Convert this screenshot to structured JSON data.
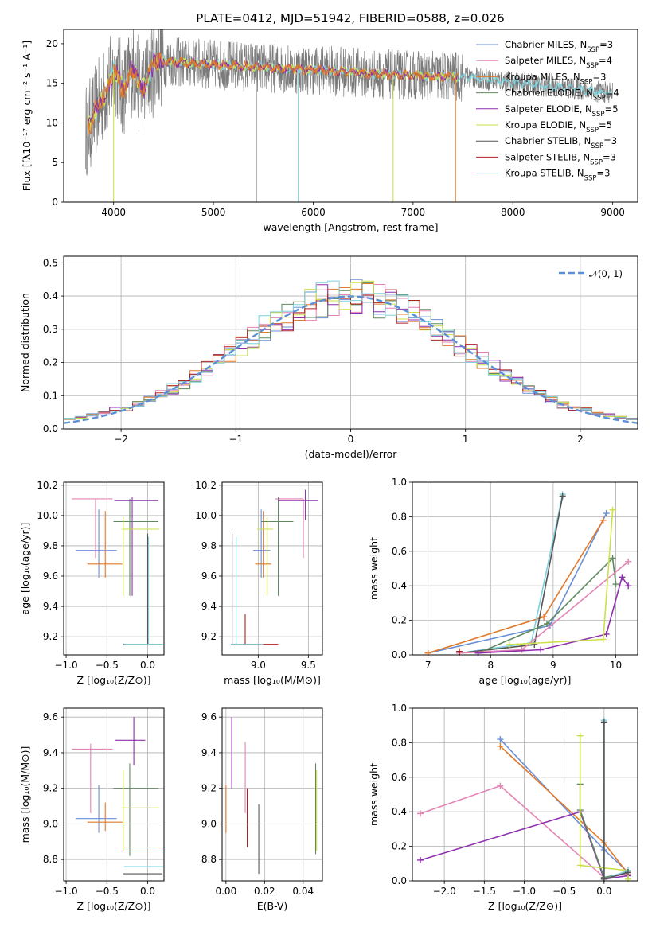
{
  "figure": {
    "title": "PLATE=0412, MJD=51942, FIBERID=0588, z=0.026"
  },
  "colors": {
    "chabrier_miles": "#6a8fd6",
    "salpeter_miles": "#e07a2a",
    "kroupa_miles": "#7a7a7a",
    "chabrier_elodie": "#5f8a5f",
    "salpeter_elodie": "#8e2fae",
    "kroupa_elodie": "#cde04a",
    "chabrier_stelib": "#555555",
    "salpeter_stelib": "#b02020",
    "kroupa_stelib": "#7fd0dc",
    "pink": "#e484b4",
    "normal": "#5b8fd6"
  },
  "chart_data": [
    {
      "id": "spectrum",
      "type": "line",
      "xlabel": "wavelength [Angstrom, rest frame]",
      "ylabel": "Flux [fλ10⁻¹⁷ erg cm⁻² s⁻¹ A⁻¹]",
      "xlim": [
        3500,
        9250
      ],
      "ylim": [
        0,
        21.8
      ],
      "xticks": [
        4000,
        5000,
        6000,
        7000,
        8000,
        9000
      ],
      "yticks": [
        0,
        5,
        10,
        15,
        20
      ],
      "legend_position": "top-right",
      "legend": [
        {
          "label": "Chabrier MILES, N",
          "sub": "SSP",
          "tail": "=3",
          "color": "#6a8fd6"
        },
        {
          "label": "Salpeter MILES, N",
          "sub": "SSP",
          "tail": "=4",
          "color": "#e484b4"
        },
        {
          "label": "Kroupa MILES, N",
          "sub": "SSP",
          "tail": "=3",
          "color": "#e07a2a"
        },
        {
          "label": "Chabrier ELODIE, N",
          "sub": "SSP",
          "tail": "=4",
          "color": "#5f8a5f"
        },
        {
          "label": "Salpeter ELODIE, N",
          "sub": "SSP",
          "tail": "=5",
          "color": "#8e2fae"
        },
        {
          "label": "Kroupa ELODIE, N",
          "sub": "SSP",
          "tail": "=5",
          "color": "#cde04a"
        },
        {
          "label": "Chabrier STELIB, N",
          "sub": "SSP",
          "tail": "=3",
          "color": "#555555"
        },
        {
          "label": "Salpeter STELIB, N",
          "sub": "SSP",
          "tail": "=3",
          "color": "#b02020"
        },
        {
          "label": "Kroupa STELIB, N",
          "sub": "SSP",
          "tail": "=3",
          "color": "#7fd0dc"
        }
      ],
      "data_trace": {
        "x_start": 3720,
        "x_end": 9000,
        "color": "#7a7a7a"
      },
      "model_traces": [
        {
          "color": "#7fd0dc",
          "x_end": 9000
        },
        {
          "color": "#cde04a",
          "x_end": 7450
        },
        {
          "color": "#8e2fae",
          "x_end": 7450
        },
        {
          "color": "#e07a2a",
          "x_end": 7450
        }
      ],
      "dips": [
        {
          "x": 4000,
          "y": 0,
          "color": "#cde04a"
        },
        {
          "x": 5430,
          "y": 0,
          "color": "#7a7a7a"
        },
        {
          "x": 5850,
          "y": 0,
          "color": "#7fd0dc"
        },
        {
          "x": 6800,
          "y": 0,
          "color": "#cde04a"
        },
        {
          "x": 7425,
          "y": 0,
          "color": "#e07a2a"
        }
      ]
    },
    {
      "id": "residuals",
      "type": "line",
      "xlabel": "(data-model)/error",
      "ylabel": "Normed distribution",
      "xlim": [
        -2.5,
        2.5
      ],
      "ylim": [
        0,
        0.52
      ],
      "xticks": [
        -2,
        -1,
        0,
        1,
        2
      ],
      "yticks": [
        0.0,
        0.1,
        0.2,
        0.3,
        0.4,
        0.5
      ],
      "xtick_labels": [
        "−2",
        "−1",
        "0",
        "1",
        "2"
      ],
      "ytick_labels": [
        "0.0",
        "0.1",
        "0.2",
        "0.3",
        "0.4",
        "0.5"
      ],
      "legend_position": "top-right",
      "normal_label": "𝒩(0, 1)",
      "bin_width": 0.1,
      "hist_colors": [
        "#6a8fd6",
        "#e484b4",
        "#e07a2a",
        "#5f8a5f",
        "#8e2fae",
        "#cde04a",
        "#b02020",
        "#7fd0dc"
      ]
    },
    {
      "id": "age_vs_Z",
      "type": "scatter",
      "xlabel": "Z [log₁₀(Z/Z⊙)]",
      "ylabel": "age  [log₁₀(age/yr)]",
      "xlim": [
        -1.03,
        0.2
      ],
      "ylim": [
        9.08,
        10.22
      ],
      "xticks": [
        -1.0,
        -0.5,
        0.0
      ],
      "xtick_labels": [
        "−1.0",
        "−0.5",
        "0.0"
      ],
      "yticks": [
        9.2,
        9.4,
        9.6,
        9.8,
        10.0,
        10.2
      ],
      "ytick_labels": [
        "9.2",
        "9.4",
        "9.6",
        "9.8",
        "10.0",
        "10.2"
      ],
      "errorbars": [
        {
          "x": -0.6,
          "y": 9.77,
          "x0": -0.88,
          "x1": -0.38,
          "y0": 9.59,
          "y1": 10.04,
          "color": "#6a8fd6"
        },
        {
          "x": -0.52,
          "y": 9.68,
          "x0": -0.74,
          "x1": -0.31,
          "y0": 9.59,
          "y1": 10.03,
          "color": "#e07a2a"
        },
        {
          "x": -0.64,
          "y": 10.11,
          "x0": -0.93,
          "x1": -0.43,
          "y0": 9.72,
          "y1": 10.11,
          "color": "#e484b4"
        },
        {
          "x": -0.22,
          "y": 9.96,
          "x0": -0.42,
          "x1": 0.13,
          "y0": 9.47,
          "y1": 10.11,
          "color": "#5f8a5f"
        },
        {
          "x": -0.19,
          "y": 10.1,
          "x0": -0.41,
          "x1": 0.13,
          "y0": 9.47,
          "y1": 10.12,
          "color": "#8e2fae"
        },
        {
          "x": -0.3,
          "y": 9.91,
          "x0": -0.32,
          "x1": 0.14,
          "y0": 9.47,
          "y1": 9.99,
          "color": "#cde04a"
        },
        {
          "x": 0.0,
          "y": 9.15,
          "x0": -0.3,
          "x1": 0.18,
          "y0": 9.15,
          "y1": 9.88,
          "color": "#555555"
        },
        {
          "x": 0.01,
          "y": 9.15,
          "x0": -0.29,
          "x1": 0.19,
          "y0": 9.15,
          "y1": 9.86,
          "color": "#7fd0dc"
        }
      ]
    },
    {
      "id": "age_vs_mass",
      "type": "scatter",
      "xlabel": "mass [log₁₀(M/M⊙)]",
      "ylabel": "",
      "xlim": [
        8.64,
        9.64
      ],
      "ylim": [
        9.08,
        10.22
      ],
      "xticks": [
        9.0,
        9.5
      ],
      "xtick_labels": [
        "9.0",
        "9.5"
      ],
      "yticks": [
        9.2,
        9.4,
        9.6,
        9.8,
        10.0,
        10.2
      ],
      "ytick_labels": [
        "9.2",
        "9.4",
        "9.6",
        "9.8",
        "10.0",
        "10.2"
      ],
      "errorbars": [
        {
          "x": 9.03,
          "y": 9.77,
          "x0": 8.95,
          "x1": 9.12,
          "y0": 9.59,
          "y1": 10.04,
          "color": "#6a8fd6"
        },
        {
          "x": 9.05,
          "y": 9.68,
          "x0": 8.97,
          "x1": 9.13,
          "y0": 9.59,
          "y1": 10.03,
          "color": "#e07a2a"
        },
        {
          "x": 9.45,
          "y": 10.11,
          "x0": 9.17,
          "x1": 9.45,
          "y0": 9.72,
          "y1": 10.11,
          "color": "#e484b4"
        },
        {
          "x": 9.2,
          "y": 9.96,
          "x0": 9.03,
          "x1": 9.35,
          "y0": 9.47,
          "y1": 10.12,
          "color": "#5f8a5f"
        },
        {
          "x": 9.47,
          "y": 10.1,
          "x0": 9.2,
          "x1": 9.6,
          "y0": 9.97,
          "y1": 10.17,
          "color": "#8e2fae"
        },
        {
          "x": 9.09,
          "y": 9.91,
          "x0": 8.99,
          "x1": 9.15,
          "y0": 9.47,
          "y1": 9.99,
          "color": "#cde04a"
        },
        {
          "x": 8.74,
          "y": 9.15,
          "x0": 8.73,
          "x1": 9.05,
          "y0": 9.15,
          "y1": 9.88,
          "color": "#555555"
        },
        {
          "x": 8.87,
          "y": 9.15,
          "x0": 8.73,
          "x1": 9.2,
          "y0": 9.15,
          "y1": 9.35,
          "color": "#b02020"
        },
        {
          "x": 8.78,
          "y": 9.15,
          "x0": 8.73,
          "x1": 9.05,
          "y0": 9.15,
          "y1": 9.86,
          "color": "#7fd0dc"
        }
      ]
    },
    {
      "id": "weight_vs_age",
      "type": "line",
      "xlabel": "age  [log₁₀(age/yr)]",
      "ylabel": "mass weight",
      "xlim": [
        6.75,
        10.35
      ],
      "ylim": [
        0,
        1.0
      ],
      "xticks": [
        7,
        8,
        9,
        10
      ],
      "xtick_labels": [
        "7",
        "8",
        "9",
        "10"
      ],
      "yticks": [
        0.0,
        0.2,
        0.4,
        0.6,
        0.8,
        1.0
      ],
      "ytick_labels": [
        "0.0",
        "0.2",
        "0.4",
        "0.6",
        "0.8",
        "1.0"
      ],
      "series": [
        {
          "color": "#6a8fd6",
          "x": [
            7.0,
            8.95,
            9.85
          ],
          "y": [
            0.01,
            0.17,
            0.82
          ]
        },
        {
          "color": "#e07a2a",
          "x": [
            7.0,
            8.85,
            9.8
          ],
          "y": [
            0.01,
            0.22,
            0.78
          ]
        },
        {
          "color": "#7fd0dc",
          "x": [
            7.5,
            8.65,
            9.15
          ],
          "y": [
            0.01,
            0.07,
            0.93
          ]
        },
        {
          "color": "#555555",
          "x": [
            7.5,
            8.7,
            9.15
          ],
          "y": [
            0.01,
            0.06,
            0.92
          ]
        },
        {
          "color": "#5f8a5f",
          "x": [
            7.8,
            8.9,
            9.95,
            10.0
          ],
          "y": [
            0.01,
            0.18,
            0.56,
            0.41
          ]
        },
        {
          "color": "#e484b4",
          "x": [
            7.5,
            8.5,
            10.2
          ],
          "y": [
            0.01,
            0.03,
            0.54
          ]
        },
        {
          "color": "#8e2fae",
          "x": [
            7.8,
            8.8,
            9.85,
            10.1,
            10.2
          ],
          "y": [
            0.01,
            0.03,
            0.12,
            0.45,
            0.4
          ]
        },
        {
          "color": "#cde04a",
          "x": [
            8.3,
            9.8,
            9.95
          ],
          "y": [
            0.06,
            0.09,
            0.84
          ]
        },
        {
          "color": "#b02020",
          "x": [
            7.5
          ],
          "y": [
            0.02
          ]
        }
      ]
    },
    {
      "id": "mass_vs_Z",
      "type": "scatter",
      "xlabel": "Z [log₁₀(Z/Z⊙)]",
      "ylabel": "mass [log₁₀(M/M⊙)]",
      "xlim": [
        -1.03,
        0.2
      ],
      "ylim": [
        8.68,
        9.65
      ],
      "xticks": [
        -1.0,
        -0.5,
        0.0
      ],
      "xtick_labels": [
        "−1.0",
        "−0.5",
        "0.0"
      ],
      "yticks": [
        8.8,
        9.0,
        9.2,
        9.4,
        9.6
      ],
      "ytick_labels": [
        "8.8",
        "9.0",
        "9.2",
        "9.4",
        "9.6"
      ],
      "errorbars": [
        {
          "x": -0.6,
          "y": 9.03,
          "x0": -0.88,
          "x1": -0.38,
          "y0": 8.95,
          "y1": 9.22,
          "color": "#6a8fd6"
        },
        {
          "x": -0.52,
          "y": 9.01,
          "x0": -0.74,
          "x1": -0.31,
          "y0": 8.96,
          "y1": 9.12,
          "color": "#e07a2a"
        },
        {
          "x": -0.7,
          "y": 9.42,
          "x0": -0.93,
          "x1": -0.43,
          "y0": 9.06,
          "y1": 9.45,
          "color": "#e484b4"
        },
        {
          "x": -0.22,
          "y": 9.2,
          "x0": -0.42,
          "x1": 0.13,
          "y0": 8.82,
          "y1": 9.34,
          "color": "#5f8a5f"
        },
        {
          "x": -0.17,
          "y": 9.47,
          "x0": -0.4,
          "x1": -0.03,
          "y0": 9.33,
          "y1": 9.6,
          "color": "#8e2fae"
        },
        {
          "x": -0.3,
          "y": 9.09,
          "x0": -0.32,
          "x1": 0.14,
          "y0": 8.85,
          "y1": 9.3,
          "color": "#cde04a"
        },
        {
          "x": 0.0,
          "y": 8.72,
          "x0": -0.3,
          "x1": 0.18,
          "y0": 8.72,
          "y1": 8.72,
          "color": "#555555"
        },
        {
          "x": -0.01,
          "y": 8.87,
          "x0": -0.29,
          "x1": 0.18,
          "y0": 8.87,
          "y1": 8.87,
          "color": "#b02020"
        },
        {
          "x": 0.01,
          "y": 8.76,
          "x0": -0.29,
          "x1": 0.19,
          "y0": 8.76,
          "y1": 8.76,
          "color": "#7fd0dc"
        }
      ]
    },
    {
      "id": "mass_vs_ebv",
      "type": "scatter",
      "xlabel": "E(B-V)",
      "ylabel": "",
      "xlim": [
        -0.002,
        0.05
      ],
      "ylim": [
        8.68,
        9.65
      ],
      "xticks": [
        0.0,
        0.02,
        0.04
      ],
      "xtick_labels": [
        "0.00",
        "0.02",
        "0.04"
      ],
      "yticks": [
        8.8,
        9.0,
        9.2,
        9.4,
        9.6
      ],
      "ytick_labels": [
        "8.8",
        "9.0",
        "9.2",
        "9.4",
        "9.6"
      ],
      "vbars": [
        {
          "x": 0.0,
          "y0": 8.95,
          "y1": 9.22,
          "color": "#e07a2a"
        },
        {
          "x": 0.003,
          "y0": 9.2,
          "y1": 9.6,
          "color": "#8e2fae"
        },
        {
          "x": 0.01,
          "y0": 9.06,
          "y1": 9.46,
          "color": "#e484b4"
        },
        {
          "x": 0.011,
          "y0": 8.87,
          "y1": 9.2,
          "color": "#b02020"
        },
        {
          "x": 0.017,
          "y0": 8.72,
          "y1": 9.11,
          "color": "#555555"
        },
        {
          "x": 0.0465,
          "y0": 8.83,
          "y1": 9.34,
          "color": "#5f8a5f"
        },
        {
          "x": 0.047,
          "y0": 8.85,
          "y1": 9.3,
          "color": "#cde04a"
        }
      ]
    },
    {
      "id": "weight_vs_Z",
      "type": "line",
      "xlabel": "Z [log₁₀(Z/Z⊙)]",
      "ylabel": "mass weight",
      "xlim": [
        -2.4,
        0.42
      ],
      "ylim": [
        0,
        1.0
      ],
      "xticks": [
        -2.0,
        -1.5,
        -1.0,
        -0.5,
        0.0
      ],
      "xtick_labels": [
        "−2.0",
        "−1.5",
        "−1.0",
        "−0.5",
        "0.0"
      ],
      "yticks": [
        0.0,
        0.2,
        0.4,
        0.6,
        0.8,
        1.0
      ],
      "ytick_labels": [
        "0.0",
        "0.2",
        "0.4",
        "0.6",
        "0.8",
        "1.0"
      ],
      "series": [
        {
          "color": "#6a8fd6",
          "x": [
            -1.3,
            0.0,
            0.3
          ],
          "y": [
            0.82,
            0.18,
            0.05
          ]
        },
        {
          "color": "#e07a2a",
          "x": [
            -1.3,
            0.0,
            0.3
          ],
          "y": [
            0.78,
            0.22,
            0.04
          ]
        },
        {
          "color": "#e484b4",
          "x": [
            -2.3,
            -1.3,
            0.0,
            0.3
          ],
          "y": [
            0.39,
            0.55,
            0.02,
            0.04
          ]
        },
        {
          "color": "#8e2fae",
          "x": [
            -2.3,
            -0.3,
            0.0,
            0.3
          ],
          "y": [
            0.12,
            0.4,
            0.01,
            0.03
          ]
        },
        {
          "color": "#5f8a5f",
          "x": [
            -0.3,
            -0.3,
            0.0,
            0.3
          ],
          "y": [
            0.56,
            0.41,
            0.02,
            0.05
          ]
        },
        {
          "color": "#cde04a",
          "x": [
            -0.3,
            -0.3,
            0.3,
            0.3
          ],
          "y": [
            0.84,
            0.09,
            0.06,
            0.01
          ]
        },
        {
          "color": "#7fd0dc",
          "x": [
            0.0,
            0.0,
            0.3
          ],
          "y": [
            0.93,
            0.01,
            0.06
          ]
        },
        {
          "color": "#555555",
          "x": [
            0.0,
            0.0,
            0.3
          ],
          "y": [
            0.92,
            0.01,
            0.05
          ]
        }
      ]
    }
  ]
}
